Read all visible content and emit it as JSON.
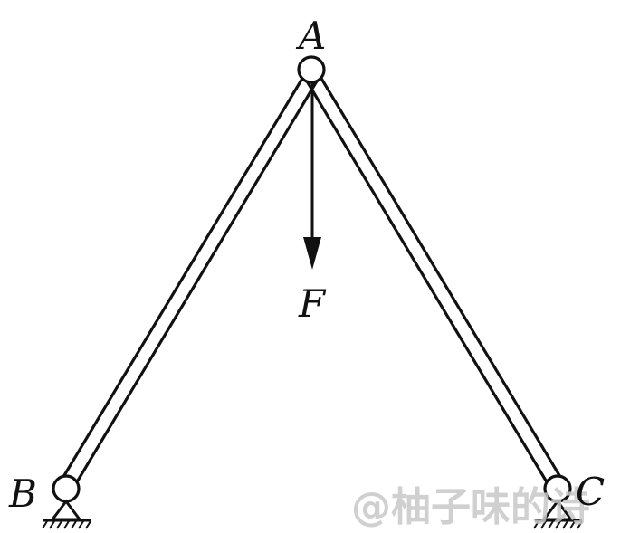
{
  "diagram": {
    "labels": {
      "A": "A",
      "B": "B",
      "C": "C",
      "F": "F"
    },
    "watermark": "@柚子味的诗",
    "colors": {
      "line": "#111111",
      "background": "#ffffff",
      "watermark": "#c8c8c8"
    }
  }
}
